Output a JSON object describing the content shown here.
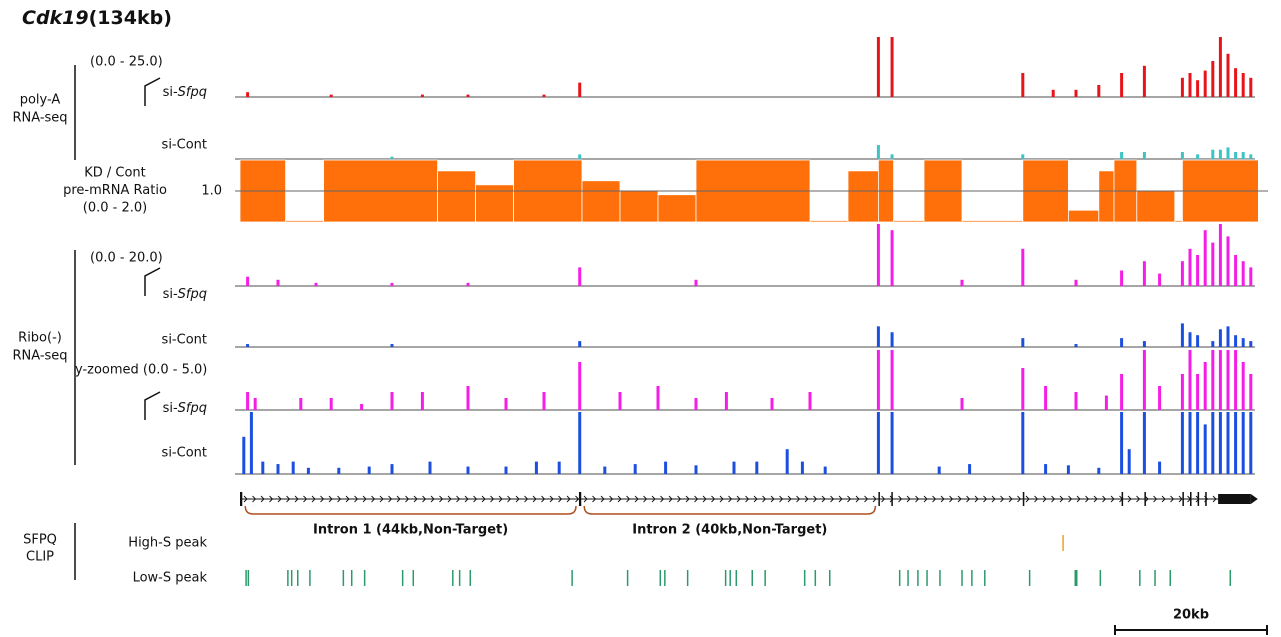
{
  "chart_data": {
    "type": "tracks",
    "title": "Cdk19",
    "title_suffix": "(134kb)",
    "groups": [
      {
        "lines": [
          "poly-A",
          "RNA-seq"
        ],
        "range": "(0.0 - 25.0)"
      },
      {
        "lines": [
          "Ribo(-)",
          "RNA-seq"
        ],
        "range": "(0.0 - 20.0)",
        "zoom_range": "y-zoomed (0.0 - 5.0)"
      },
      {
        "lines": [
          "SFPQ",
          "CLIP"
        ]
      }
    ],
    "series": [
      {
        "name_prefix": "si-",
        "name_italic": "Sfpq",
        "color": "#e8141a",
        "ylim": [
          0,
          25
        ],
        "x": [
          1,
          12,
          24,
          30,
          40,
          44.7,
          84,
          85.8,
          103,
          107,
          110,
          113,
          116,
          119,
          124,
          125,
          126,
          127,
          128,
          129,
          130,
          131,
          132,
          133
        ],
        "values": [
          2,
          1,
          1,
          1,
          1,
          6,
          25,
          25,
          10,
          3,
          3,
          5,
          10,
          13,
          8,
          10,
          7,
          11,
          15,
          25,
          18,
          12,
          10,
          8
        ]
      },
      {
        "name": "si-Cont",
        "color": "#3cc3c3",
        "ylim": [
          0,
          25
        ],
        "x": [
          20,
          44.7,
          84,
          85.8,
          103,
          116,
          119,
          124,
          126,
          128,
          129,
          130,
          131,
          132,
          133
        ],
        "values": [
          1,
          2,
          6,
          2,
          2,
          3,
          3,
          3,
          2,
          4,
          4,
          5,
          3,
          3,
          2
        ]
      },
      {
        "name_prefix": "si-",
        "name_italic": "Sfpq",
        "color": "#f51ee6",
        "ylim": [
          0,
          20
        ],
        "x": [
          1,
          5,
          10,
          20,
          30,
          44.7,
          60,
          84,
          85.8,
          95,
          103,
          110,
          116,
          119,
          121,
          124,
          125,
          126,
          127,
          128,
          129,
          130,
          131,
          132,
          133
        ],
        "values": [
          3,
          2,
          1,
          1,
          1,
          6,
          2,
          20,
          18,
          2,
          12,
          2,
          5,
          8,
          4,
          8,
          12,
          10,
          18,
          14,
          20,
          16,
          10,
          8,
          6
        ]
      },
      {
        "name": "si-Cont",
        "color": "#1c4fe0",
        "ylim": [
          0,
          20
        ],
        "x": [
          1,
          20,
          44.7,
          84,
          85.8,
          103,
          110,
          116,
          119,
          124,
          125,
          126,
          128,
          129,
          130,
          131,
          132,
          133
        ],
        "values": [
          1,
          1,
          2,
          7,
          5,
          3,
          1,
          3,
          2,
          8,
          5,
          4,
          2,
          6,
          7,
          4,
          3,
          2
        ]
      },
      {
        "name_prefix": "si-",
        "name_italic": "Sfpq",
        "color": "#f51ee6",
        "ylim": [
          0,
          5
        ],
        "x": [
          1,
          2,
          8,
          12,
          16,
          20,
          24,
          30,
          35,
          40,
          44.7,
          50,
          55,
          60,
          64,
          70,
          75,
          84,
          85.8,
          95,
          103,
          106,
          110,
          114,
          116,
          119,
          121,
          124,
          125,
          126,
          127,
          128,
          129,
          130,
          131,
          132,
          133
        ],
        "values": [
          1.5,
          1,
          1,
          1,
          0.5,
          1.5,
          1.5,
          2,
          1,
          1.5,
          4,
          1.5,
          2,
          1,
          1.5,
          1,
          1.5,
          5,
          5,
          1,
          3.5,
          2,
          1.5,
          1.2,
          3,
          5,
          2,
          3,
          5,
          3,
          4,
          5,
          5,
          5,
          5,
          4,
          3
        ]
      },
      {
        "name": "si-Cont",
        "color": "#1c4fe0",
        "ylim": [
          0,
          5
        ],
        "x": [
          0.5,
          1.5,
          3,
          5,
          7,
          9,
          13,
          17,
          20,
          25,
          30,
          35,
          39,
          42,
          44.7,
          48,
          52,
          56,
          60,
          65,
          68,
          72,
          74,
          77,
          84,
          85.8,
          92,
          96,
          103,
          106,
          109,
          113,
          116,
          117,
          119,
          121,
          124,
          125,
          126,
          127,
          128,
          129,
          130,
          131,
          132,
          133
        ],
        "values": [
          3,
          5,
          1,
          0.8,
          1,
          0.5,
          0.5,
          0.6,
          0.8,
          1,
          0.6,
          0.6,
          1,
          1,
          5,
          0.6,
          0.8,
          1,
          0.7,
          1,
          1,
          2,
          1,
          0.6,
          5,
          5,
          0.6,
          0.8,
          5,
          0.8,
          0.7,
          0.5,
          5,
          2,
          5,
          1,
          5,
          5,
          5,
          4,
          5,
          5,
          5,
          5,
          5,
          5
        ]
      }
    ],
    "ratio": {
      "lines": [
        "KD / Cont",
        "pre-mRNA Ratio",
        "(0.0 - 2.0)"
      ],
      "color": "#ff6f0a",
      "ylim": [
        0,
        2
      ],
      "yticks": [
        {
          "value": 1,
          "label": "1.0"
        }
      ],
      "starts": [
        0,
        6,
        11,
        26,
        31,
        36,
        45,
        50,
        55,
        60,
        75,
        80,
        84,
        86,
        90,
        95,
        103,
        109,
        113,
        115,
        118,
        123,
        124
      ],
      "ends": [
        6,
        11,
        26,
        31,
        36,
        45,
        50,
        55,
        60,
        75,
        80,
        84,
        86,
        90,
        95,
        103,
        109,
        113,
        115,
        118,
        123,
        124,
        134
      ],
      "values": [
        2,
        0,
        2,
        1.65,
        1.2,
        2,
        1.33,
        1,
        0.88,
        2,
        0,
        1.65,
        2,
        0,
        2,
        0,
        2,
        0.38,
        1.65,
        2,
        1,
        0,
        2
      ]
    },
    "gene": {
      "exon_starts": [
        0,
        44.6,
        84,
        85.7,
        103,
        116,
        119,
        124,
        125,
        126,
        127,
        128.7
      ],
      "exon_ends": [
        0.3,
        44.9,
        84.2,
        85.9,
        103.2,
        116.2,
        119.2,
        124.2,
        125.2,
        126.2,
        127.2,
        133
      ],
      "introns": [
        "Intron 1 (44kb,Non-Target)",
        "Intron 2 (40kb,Non-Target)"
      ]
    },
    "clip": [
      {
        "name": "High-S peak",
        "color": "#f0a020",
        "x": [
          108.3
        ]
      },
      {
        "name": "Low-S peak",
        "color": "#2a9a6a",
        "x": [
          0.8,
          1.1,
          6.3,
          6.8,
          7.6,
          9.2,
          13.6,
          14.7,
          16.4,
          21.4,
          22.8,
          28,
          28.9,
          30.3,
          43.7,
          51,
          55.3,
          55.9,
          58.9,
          63.9,
          64.5,
          65.3,
          67.4,
          69.1,
          74.3,
          75.7,
          77.6,
          86.8,
          87.9,
          89.2,
          90.4,
          92.1,
          95,
          96.3,
          98,
          103.9,
          109.9,
          110.1,
          113.2,
          118.4,
          120.4,
          122.4,
          130.3
        ]
      }
    ],
    "scale_bar": {
      "label": "20kb",
      "length": 20
    }
  }
}
